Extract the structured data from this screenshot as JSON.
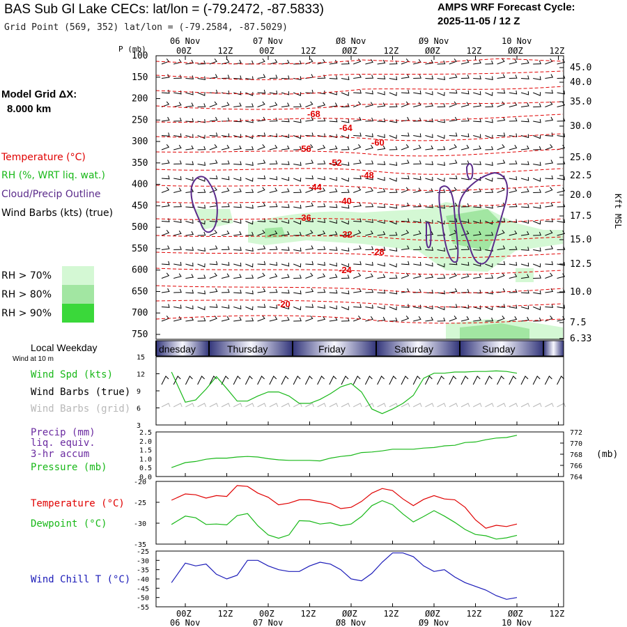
{
  "header": {
    "title": "BAS Sub Gl Lake CECs:  lat/lon = (-79.2472, -87.5833)",
    "grid_point": "Grid Point (569, 352) lat/lon = (-79.2584, -87.5029)",
    "cycle_title": "AMPS WRF Forecast Cycle:",
    "cycle_value": "2025-11-05 / 12  Z",
    "model_grid_label": "Model Grid ΔX:",
    "model_grid_value": "8.000 km"
  },
  "legend": {
    "temperature": "Temperature (°C)",
    "rh": "RH (%, WRT liq. wat.)",
    "cloud": "Cloud/Precip Outline",
    "wind_barbs": "Wind Barbs (kts) (true)",
    "rh70": "RH > 70%",
    "rh80": "RH > 80%",
    "rh90": "RH > 90%"
  },
  "colors": {
    "temperature": "#e00000",
    "rh70": "#d4f8d4",
    "rh80": "#a2e6a2",
    "rh90": "#3ad83a",
    "cloud": "#5a2a8a",
    "wind_spd": "#18b818",
    "wind_grid": "#b8b8b8",
    "dewpoint": "#18b818",
    "precip_label": "#6a2aa0",
    "wind_chill": "#1a1ab8",
    "day_band": "#32357a"
  },
  "time_axis": {
    "top_dates": [
      "06 Nov",
      "07 Nov",
      "Ø8 Nov",
      "Ø9 Nov",
      "10 Nov"
    ],
    "hours": [
      "00Z",
      "12Z",
      "00Z",
      "12Z",
      "ØØZ",
      "12Z",
      "ØØZ",
      "12Z",
      "ØØZ",
      "12Z"
    ],
    "bottom_dates": [
      "06 Nov",
      "07 Nov",
      "Ø8 Nov",
      "Ø9 Nov",
      "10 Nov"
    ],
    "weekdays": [
      "dnesday",
      "Thursday",
      "Friday",
      "Saturday",
      "Sunday"
    ],
    "weekday_label": "Local Weekday",
    "wind_10m_label": "Wind at 10 m"
  },
  "cross_section": {
    "pressure_unit": "P (mb)",
    "pressure_ticks": [
      "100",
      "150",
      "200",
      "250",
      "300",
      "350",
      "400",
      "450",
      "500",
      "550",
      "600",
      "650",
      "700",
      "750"
    ],
    "height_ticks": [
      "45.0",
      "40.0",
      "35.0",
      "30.0",
      "25.0",
      "22.5",
      "20.0",
      "17.5",
      "15.0",
      "12.5",
      "10.0",
      "7.5",
      "6.33"
    ],
    "height_unit": "Kft MSL",
    "temperature_labels": [
      "-68",
      "-64",
      "-60",
      "-56",
      "-52",
      "-48",
      "-44",
      "-40",
      "-36",
      "-32",
      "-28",
      "-24",
      "-20"
    ]
  },
  "panels": {
    "wind": {
      "label_spd": "Wind Spd (kts)",
      "label_true": "Wind Barbs (true)",
      "label_grid": "Wind Barbs (grid)",
      "yticks": [
        "15",
        "12",
        "9",
        "6",
        "3"
      ]
    },
    "precip": {
      "label_1": "Precip (mm)",
      "label_2": "liq. equiv.",
      "label_3": "3-hr accum",
      "label_pressure": "Pressure (mb)",
      "left_ticks": [
        "2.5",
        "2.0",
        "1.5",
        "1.0",
        "0.5",
        "0.0"
      ],
      "right_ticks": [
        "772",
        "770",
        "768",
        "766",
        "764"
      ],
      "right_unit": "(mb)"
    },
    "temp": {
      "label_temp": "Temperature (°C)",
      "label_dew": "Dewpoint (°C)",
      "yticks": [
        "-20",
        "-25",
        "-30",
        "-35"
      ]
    },
    "chill": {
      "label": "Wind Chill T (°C)",
      "yticks": [
        "-25",
        "-30",
        "-35",
        "-40",
        "-45",
        "-50",
        "-55"
      ]
    }
  },
  "chart_data": [
    {
      "type": "line",
      "panel": "wind",
      "x": [
        -4,
        0,
        3,
        6,
        9,
        12,
        15,
        18,
        21,
        24,
        27,
        30,
        33,
        36,
        39,
        42,
        45,
        48,
        51,
        54,
        57,
        60,
        63,
        66,
        69,
        72,
        75,
        78,
        81,
        84,
        87,
        90,
        93,
        96
      ],
      "series": [
        {
          "name": "Wind Spd (kts)",
          "values": [
            12.3,
            7,
            7.4,
            9.3,
            11.5,
            9.4,
            7.2,
            7.2,
            8.1,
            8.8,
            8.8,
            8.1,
            6.8,
            6.8,
            7.5,
            8.5,
            9.7,
            10.3,
            8.8,
            5.8,
            5,
            5.8,
            6.8,
            8.2,
            11.2,
            12.1,
            12.1,
            12.3,
            12.3,
            12.4,
            12.4,
            12.5,
            12.4,
            12.1
          ]
        }
      ],
      "ylim": [
        3,
        15
      ]
    },
    {
      "type": "line",
      "panel": "precip-pressure",
      "x": [
        -4,
        0,
        3,
        6,
        9,
        12,
        15,
        18,
        21,
        24,
        27,
        30,
        33,
        36,
        39,
        42,
        45,
        48,
        51,
        54,
        57,
        60,
        63,
        66,
        69,
        72,
        75,
        78,
        81,
        84,
        87,
        90,
        93,
        96
      ],
      "series": [
        {
          "name": "Pressure (mb)",
          "values": [
            765.6,
            766.5,
            766.7,
            767.1,
            767.3,
            767.3,
            767.5,
            767.6,
            767.5,
            767.2,
            767.0,
            766.9,
            766.9,
            766.9,
            766.8,
            767.3,
            767.6,
            767.8,
            768.3,
            768.4,
            768.6,
            768.9,
            768.9,
            768.9,
            769.1,
            769.2,
            769.5,
            769.6,
            770.1,
            770.2,
            770.6,
            770.9,
            771.0,
            771.4
          ]
        }
      ],
      "ylim": [
        764,
        772
      ],
      "secondary_ylim_precip": [
        0,
        2.5
      ]
    },
    {
      "type": "line",
      "panel": "temperature",
      "x": [
        -4,
        0,
        3,
        6,
        9,
        12,
        15,
        18,
        21,
        24,
        27,
        30,
        33,
        36,
        39,
        42,
        45,
        48,
        51,
        54,
        57,
        60,
        63,
        66,
        69,
        72,
        75,
        78,
        81,
        84,
        87,
        90,
        93,
        96
      ],
      "series": [
        {
          "name": "Temperature (°C)",
          "values": [
            -24.5,
            -23,
            -23.2,
            -24,
            -23.4,
            -23.6,
            -21,
            -21.2,
            -22.8,
            -23.8,
            -25.6,
            -25.2,
            -24.4,
            -24.4,
            -24.9,
            -25.3,
            -26.5,
            -26.2,
            -24.8,
            -22.8,
            -21.7,
            -22.2,
            -24.2,
            -25.8,
            -24.3,
            -23.4,
            -24.2,
            -24.4,
            -26.2,
            -29.2,
            -31.2,
            -30.5,
            -30.8,
            -30.2
          ]
        },
        {
          "name": "Dewpoint (°C)",
          "values": [
            -30.3,
            -28.3,
            -28.7,
            -30.3,
            -30.2,
            -30.4,
            -28.2,
            -27.7,
            -30.6,
            -32.8,
            -33.6,
            -32.8,
            -29.4,
            -29.5,
            -30.2,
            -29.9,
            -30.6,
            -30.2,
            -28.4,
            -25.8,
            -24.6,
            -25.6,
            -27.8,
            -29.7,
            -28.4,
            -27.0,
            -28.3,
            -29.8,
            -31.5,
            -32.7,
            -33.0,
            -33.8,
            -33.5,
            -32.9
          ]
        }
      ],
      "ylim": [
        -35,
        -20
      ]
    },
    {
      "type": "line",
      "panel": "wind-chill",
      "x": [
        -4,
        0,
        3,
        6,
        9,
        12,
        15,
        18,
        21,
        24,
        27,
        30,
        33,
        36,
        39,
        42,
        45,
        48,
        51,
        54,
        57,
        60,
        63,
        66,
        69,
        72,
        75,
        78,
        81,
        84,
        87,
        90,
        93,
        96
      ],
      "series": [
        {
          "name": "Wind Chill T (°C)",
          "values": [
            -42,
            -31.5,
            -33,
            -32,
            -37.5,
            -40,
            -38,
            -30,
            -30,
            -33,
            -35,
            -36,
            -36,
            -33,
            -31,
            -32,
            -35,
            -40,
            -41,
            -37,
            -31,
            -26,
            -26,
            -28,
            -33,
            -36,
            -35,
            -39,
            -42,
            -44,
            -46,
            -49,
            -51,
            -50
          ]
        }
      ],
      "ylim": [
        -55,
        -25
      ]
    }
  ]
}
